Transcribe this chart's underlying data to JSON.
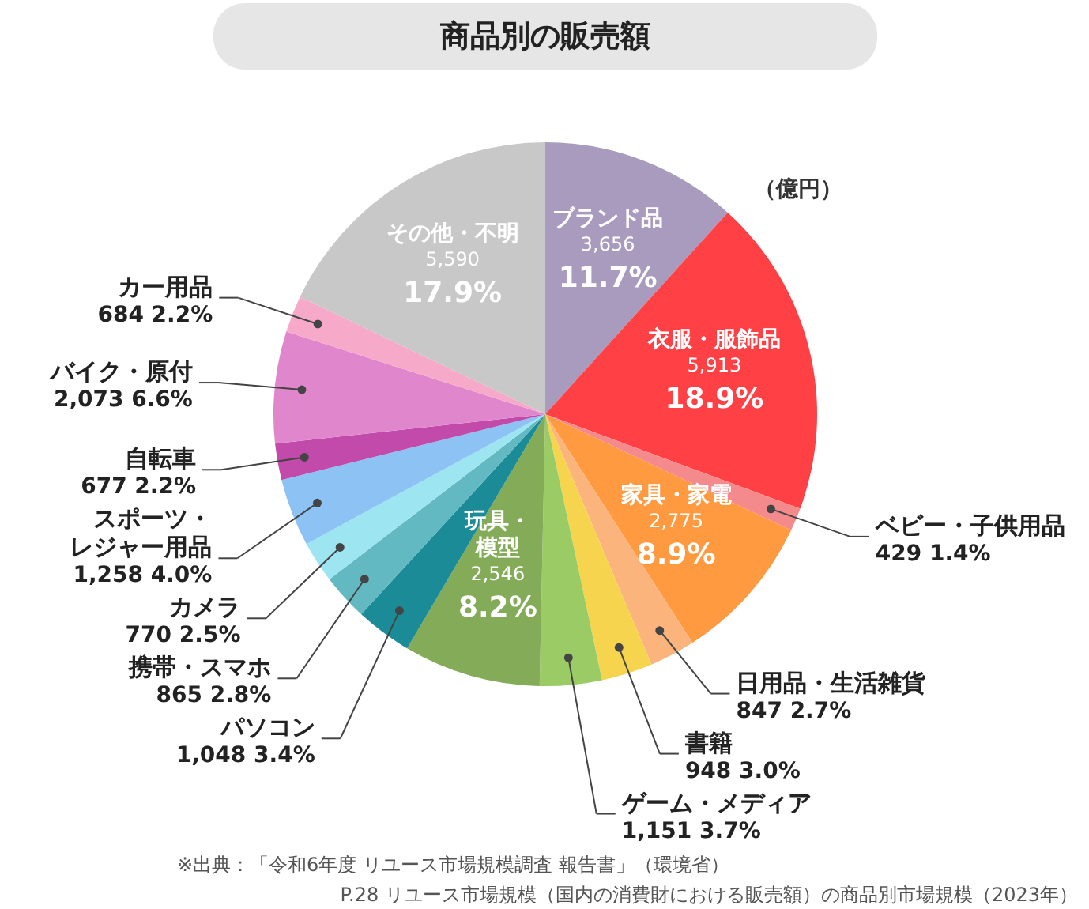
{
  "chart_data": {
    "type": "pie",
    "title": "商品別の販売額",
    "categories": [
      "ブランド品",
      "衣服・服飾品",
      "ベビー・子供用品",
      "家具・家電",
      "日用品・生活雑貨",
      "書籍",
      "ゲーム・メディア",
      "玩具・模型",
      "パソコン",
      "携帯・スマホ",
      "カメラ",
      "スポーツ・レジャー用品",
      "自転車",
      "バイク・原付",
      "カー用品",
      "その他・不明"
    ],
    "values": [
      3656,
      5913,
      429,
      2775,
      847,
      948,
      1151,
      2546,
      1048,
      865,
      770,
      1258,
      677,
      2073,
      684,
      5590
    ],
    "colors": [
      "#a99bbd",
      "#ff4045",
      "#f48a8c",
      "#ff9a40",
      "#fbb47c",
      "#f6d44e",
      "#9bcb64",
      "#84ab58",
      "#1b8c97",
      "#62b9c2",
      "#9de5f0",
      "#8cc3f4",
      "#c24aaa",
      "#e086cc",
      "#f7a9c9",
      "#c8c8c8"
    ],
    "value_labels": [
      "3,656 11.7%",
      "5,913 18.9%",
      "429 1.4%",
      "2,775 8.9%",
      "847 2.7%",
      "948 3.0%",
      "1,151 3.7%",
      "2,546 8.2%",
      "1,048 3.4%",
      "865 2.8%",
      "770 2.5%",
      "1,258 4.0%",
      "677 2.2%",
      "2,073 6.6%",
      "684 2.2%",
      "5,590 17.9%"
    ],
    "annotations": [
      "（億円）",
      "※出典：「令和6年度 リユース市場規模調査 報告書」（環境省）",
      "P.28 リユース市場規模（国内の消費財における販売額）の商品別市場規模（2023年）"
    ]
  }
}
